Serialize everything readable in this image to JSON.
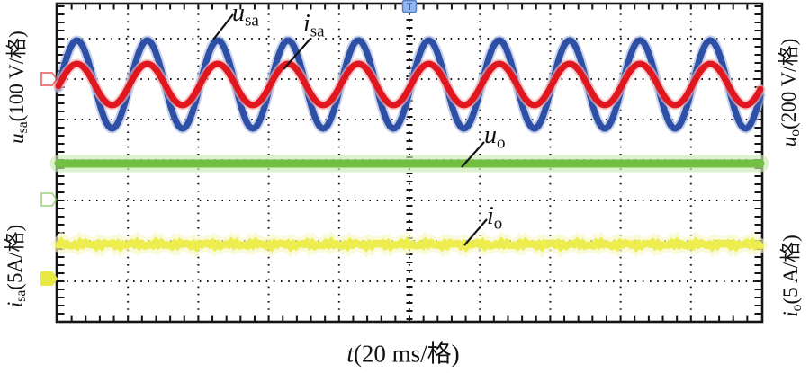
{
  "figure": {
    "axes": {
      "left_top": {
        "var": "u",
        "sub": "sa",
        "unit": "(100 V/格)"
      },
      "left_bottom": {
        "var": "i",
        "sub": "sa",
        "unit": "(5A/格)"
      },
      "right_top": {
        "var": "u",
        "sub": "o",
        "unit": "(200 V/格)"
      },
      "right_bottom": {
        "var": "i",
        "sub": "o",
        "unit": "(5 A/格)"
      },
      "bottom": {
        "var": "t",
        "sub": "",
        "unit": "(20 ms/格)"
      }
    },
    "annotations": {
      "u_sa": {
        "var": "u",
        "sub": "sa"
      },
      "i_sa": {
        "var": "i",
        "sub": "sa"
      },
      "u_o": {
        "var": "u",
        "sub": "o"
      },
      "i_o": {
        "var": "i",
        "sub": "o"
      }
    },
    "trigger_label": "T"
  },
  "chart_data": {
    "type": "line",
    "title": "",
    "xlabel": "t(20 ms/格)",
    "x_divisions": 10,
    "y_divisions": 8,
    "x_per_division": "20 ms",
    "grid": "dotted",
    "legend_position": "inline-callouts",
    "trigger_x_div": 5,
    "series": [
      {
        "name": "u_sa",
        "color": "#2d4fa5",
        "halo": "#a9bade",
        "waveform": "sine",
        "offset_div": 2.133,
        "amplitude_div": 1.09,
        "period_div": 1,
        "peak_x_div": 0.275,
        "scale": "100 V/格"
      },
      {
        "name": "i_sa",
        "color": "#e0171f",
        "halo": "#f2b4b6",
        "waveform": "sine",
        "offset_div": 2.133,
        "amplitude_div": 0.511,
        "period_div": 1,
        "peak_x_div": 0.275,
        "scale": "5 A/格"
      },
      {
        "name": "u_o",
        "color": "#72bf44",
        "halo": "#cdeab3",
        "waveform": "dc",
        "offset_div": 4.089,
        "scale": "200 V/格"
      },
      {
        "name": "i_o",
        "color": "#eded4f",
        "halo": "#f8f8c6",
        "waveform": "dc-ripple",
        "offset_div": 6.089,
        "scale": "5 A/格"
      }
    ],
    "ground_markers": [
      {
        "channel": "u_sa/i_sa",
        "color": "#e0171f",
        "y_div": 2.0,
        "style": "open"
      },
      {
        "channel": "u_o",
        "color": "#72bf44",
        "y_div": 4.978,
        "style": "open"
      },
      {
        "channel": "i_o",
        "color": "#e8e83c",
        "y_div": 6.933,
        "style": "filled"
      }
    ]
  }
}
